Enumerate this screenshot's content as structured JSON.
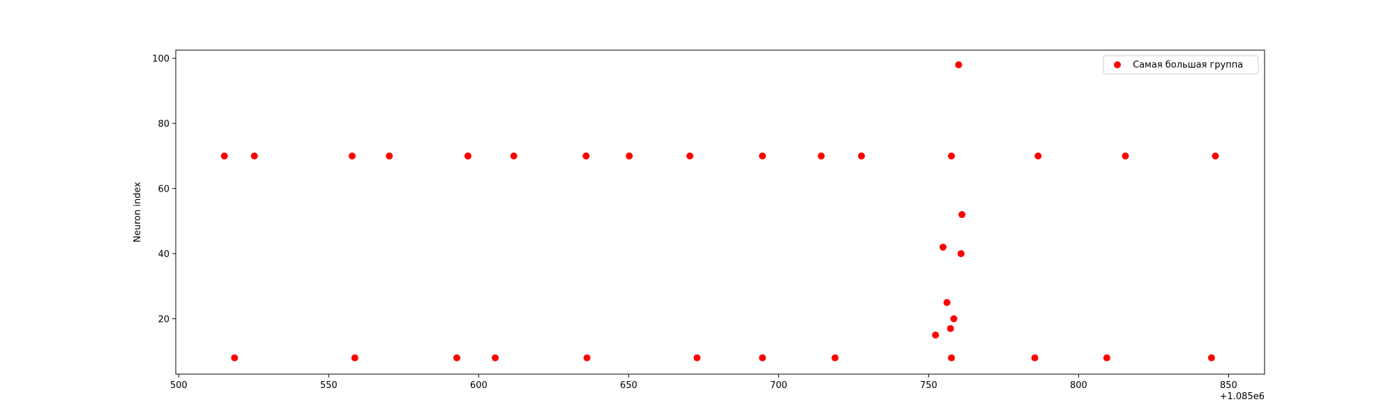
{
  "chart_data": {
    "type": "scatter",
    "title": "",
    "xlabel": "",
    "ylabel": "Neuron index",
    "x_offset_label": "+1.085e6",
    "xlim": [
      499,
      862
    ],
    "ylim": [
      3,
      102.5
    ],
    "xticks": [
      500,
      550,
      600,
      650,
      700,
      750,
      800,
      850
    ],
    "yticks": [
      20,
      40,
      60,
      80,
      100
    ],
    "grid": false,
    "legend_position": "top-right",
    "series": [
      {
        "name": "Самая большая группа",
        "color": "#ff0000",
        "points": [
          [
            515.2,
            70
          ],
          [
            525.2,
            70
          ],
          [
            557.8,
            70
          ],
          [
            570.2,
            70
          ],
          [
            596.4,
            70
          ],
          [
            611.7,
            70
          ],
          [
            635.8,
            70
          ],
          [
            650.2,
            70
          ],
          [
            670.4,
            70
          ],
          [
            694.6,
            70
          ],
          [
            714.2,
            70
          ],
          [
            727.6,
            70
          ],
          [
            757.6,
            70
          ],
          [
            786.5,
            70
          ],
          [
            815.6,
            70
          ],
          [
            845.6,
            70
          ],
          [
            518.6,
            8
          ],
          [
            558.7,
            8
          ],
          [
            592.7,
            8
          ],
          [
            605.5,
            8
          ],
          [
            636.1,
            8
          ],
          [
            672.8,
            8
          ],
          [
            694.6,
            8
          ],
          [
            718.8,
            8
          ],
          [
            757.6,
            8
          ],
          [
            785.4,
            8
          ],
          [
            809.4,
            8
          ],
          [
            844.3,
            8
          ],
          [
            760.0,
            98
          ],
          [
            761.1,
            52
          ],
          [
            754.8,
            42
          ],
          [
            760.8,
            40
          ],
          [
            756.1,
            25
          ],
          [
            758.4,
            20
          ],
          [
            757.3,
            17
          ],
          [
            752.3,
            15
          ]
        ]
      }
    ]
  }
}
